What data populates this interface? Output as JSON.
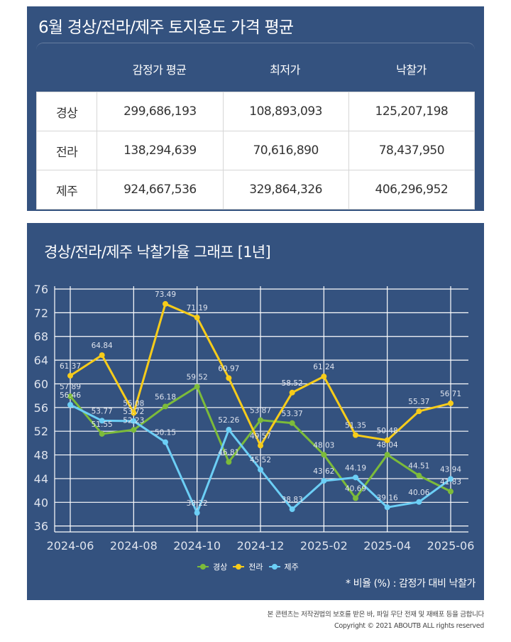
{
  "price_table": {
    "title": "6월 경상/전라/제주 토지용도 가격 평균",
    "headers": [
      "감정가 평균",
      "최저가",
      "낙찰가"
    ],
    "rows": [
      {
        "region": "경상",
        "values": [
          "299,686,193",
          "108,893,093",
          "125,207,198"
        ]
      },
      {
        "region": "전라",
        "values": [
          "138,294,639",
          "70,616,890",
          "78,437,950"
        ]
      },
      {
        "region": "제주",
        "values": [
          "924,667,536",
          "329,864,326",
          "406,296,952"
        ]
      }
    ]
  },
  "chart_section": {
    "title": "경상/전라/제주 낙찰가율 그래프 [1년]",
    "note": "* 비율 (%) : 감정가 대비 낙찰가"
  },
  "footer": {
    "notice": "본 콘텐츠는 저작권법의 보호를 받은 바, 파일 무단 전재 및 재배포 등을 금합니다",
    "copyright": "Copyright © 2021 ABOUTB ALL rights reserved"
  },
  "colors": {
    "panel_bg": "#34527f",
    "grid": "#ffffff",
    "경상": "#7cbb3a",
    "전라": "#f7cc1a",
    "제주": "#6ccff6"
  },
  "chart_data": {
    "type": "line",
    "title": "경상/전라/제주 낙찰가율 그래프 [1년]",
    "xlabel": "",
    "ylabel": "",
    "x": [
      "2024-06",
      "2024-07",
      "2024-08",
      "2024-09",
      "2024-10",
      "2024-11",
      "2024-12",
      "2025-01",
      "2025-02",
      "2025-03",
      "2025-04",
      "2025-05",
      "2025-06"
    ],
    "x_tick_labels": [
      "2024-06",
      "2024-08",
      "2024-10",
      "2024-12",
      "2025-02",
      "2025-04",
      "2025-06"
    ],
    "y_ticks": [
      36,
      40,
      44,
      48,
      52,
      56,
      60,
      64,
      68,
      72,
      76
    ],
    "ylim": [
      35,
      76
    ],
    "grid": true,
    "legend_position": "bottom-center",
    "series": [
      {
        "name": "경상",
        "color": "#7cbb3a",
        "values": [
          57.89,
          51.55,
          52.23,
          56.18,
          59.52,
          46.81,
          53.87,
          53.37,
          48.03,
          40.69,
          48.04,
          44.51,
          41.83
        ]
      },
      {
        "name": "전라",
        "color": "#f7cc1a",
        "values": [
          61.37,
          64.84,
          55.08,
          73.49,
          71.19,
          60.97,
          49.57,
          58.52,
          61.24,
          51.35,
          50.48,
          55.37,
          56.71
        ]
      },
      {
        "name": "제주",
        "color": "#6ccff6",
        "values": [
          56.46,
          53.77,
          53.72,
          50.15,
          38.22,
          52.26,
          45.52,
          38.83,
          43.62,
          44.19,
          39.16,
          40.06,
          43.94
        ]
      }
    ]
  }
}
